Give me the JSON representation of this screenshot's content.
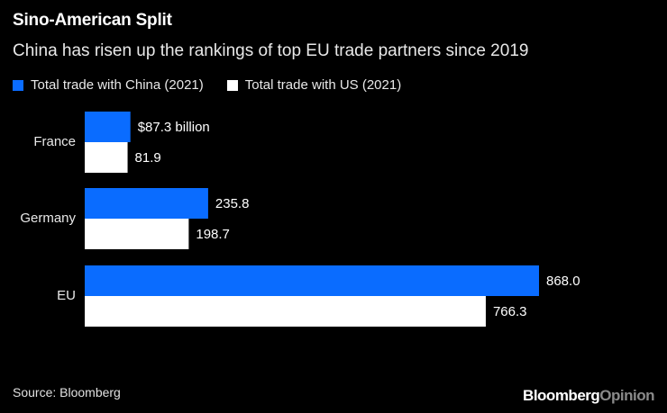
{
  "header": {
    "title": "Sino-American Split",
    "subtitle": "China has risen up the rankings of top EU trade partners since 2019"
  },
  "footer": {
    "source": "Source: Bloomberg",
    "brand_part1": "Bloomberg",
    "brand_part2": "Opinion"
  },
  "colors": {
    "background": "#000000",
    "china": "#0a6cff",
    "us": "#ffffff",
    "text": "#ffffff"
  },
  "chart_data": {
    "type": "bar",
    "orientation": "horizontal",
    "title": "Sino-American Split",
    "subtitle": "China has risen up the rankings of top EU trade partners since 2019",
    "categories": [
      "France",
      "Germany",
      "EU"
    ],
    "series": [
      {
        "name": "Total trade with China (2021)",
        "color": "#0a6cff",
        "values": [
          87.3,
          235.8,
          868.0
        ],
        "labels": [
          "$87.3 billion",
          "235.8",
          "868.0"
        ]
      },
      {
        "name": "Total trade with US (2021)",
        "color": "#ffffff",
        "values": [
          81.9,
          198.7,
          766.3
        ],
        "labels": [
          "81.9",
          "198.7",
          "766.3"
        ]
      }
    ],
    "xlim": [
      0,
      868.0
    ],
    "grid": false,
    "legend": "top-left"
  }
}
